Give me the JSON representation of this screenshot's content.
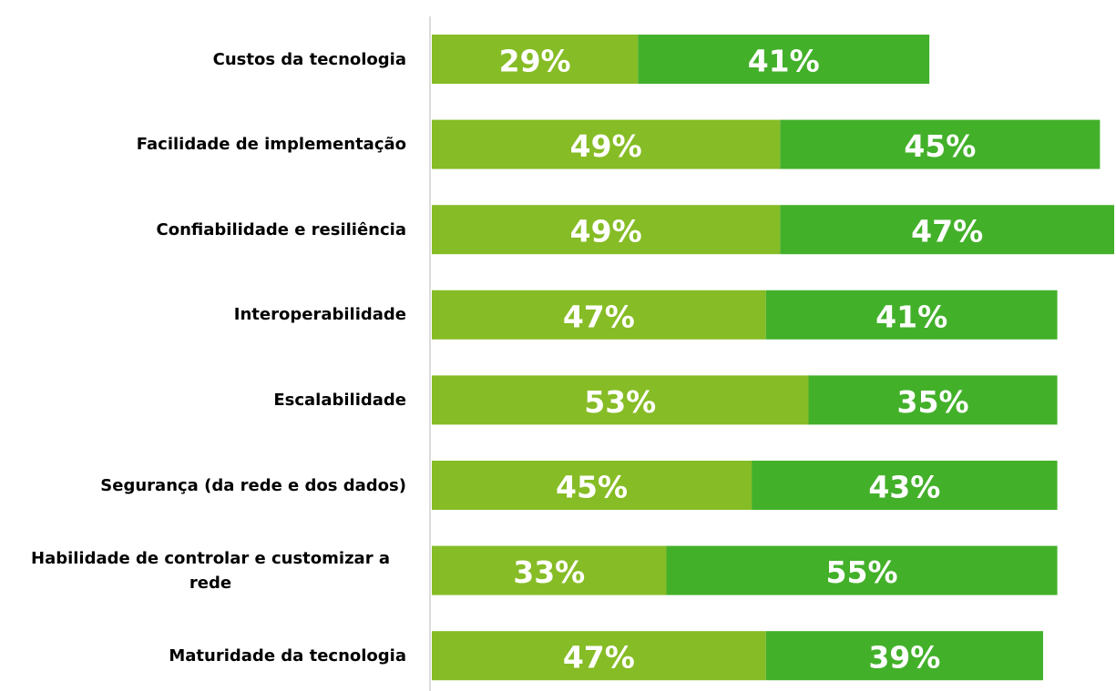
{
  "chart_data": {
    "type": "stacked-bar-horizontal",
    "categories": [
      "Custos da tecnologia",
      "Facilidade de implementação",
      "Confiabilidade e resiliência",
      "Interoperabilidade",
      "Escalabilidade",
      "Segurança (da rede e dos dados)",
      "Habilidade de controlar e customizar a rede",
      "Maturidade da tecnologia"
    ],
    "series": [
      {
        "color": "#86bc25",
        "values": [
          29,
          49,
          49,
          47,
          53,
          45,
          33,
          47
        ],
        "value_labels": [
          "29%",
          "49%",
          "49%",
          "47%",
          "53%",
          "45%",
          "33%",
          "47%"
        ]
      },
      {
        "color": "#43b02a",
        "values": [
          41,
          45,
          47,
          41,
          35,
          43,
          55,
          39
        ],
        "value_labels": [
          "41%",
          "45%",
          "47%",
          "41%",
          "35%",
          "43%",
          "55%",
          "39%"
        ]
      }
    ]
  }
}
